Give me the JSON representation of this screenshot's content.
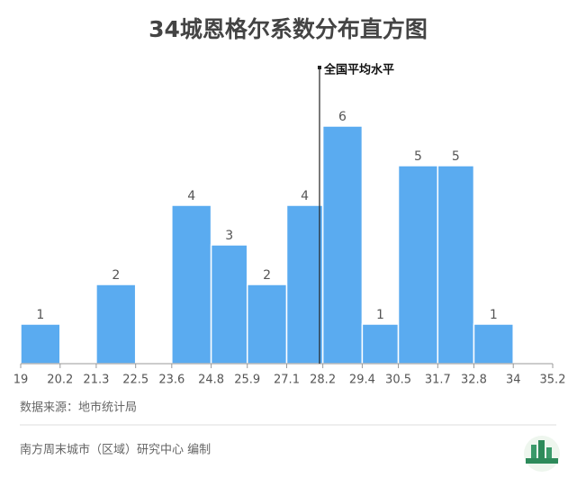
{
  "chart_data": {
    "type": "histogram",
    "title": "34城恩格尔系数分布直方图",
    "bins": [
      19,
      20.2,
      21.3,
      22.5,
      23.6,
      24.8,
      25.9,
      27.1,
      28.2,
      29.4,
      30.5,
      31.7,
      32.8,
      34,
      35.2
    ],
    "values": [
      1,
      0,
      2,
      0,
      4,
      3,
      2,
      4,
      6,
      1,
      5,
      5,
      1,
      0
    ],
    "color": "#5aabf0",
    "xlim": [
      19,
      35.2
    ],
    "ylim": [
      0,
      6
    ],
    "annotation": {
      "text": "全国平均水平",
      "x": 28.1
    },
    "source": "数据来源：地市统计局",
    "credit": "南方周末城市（区域）研究中心 编制"
  }
}
